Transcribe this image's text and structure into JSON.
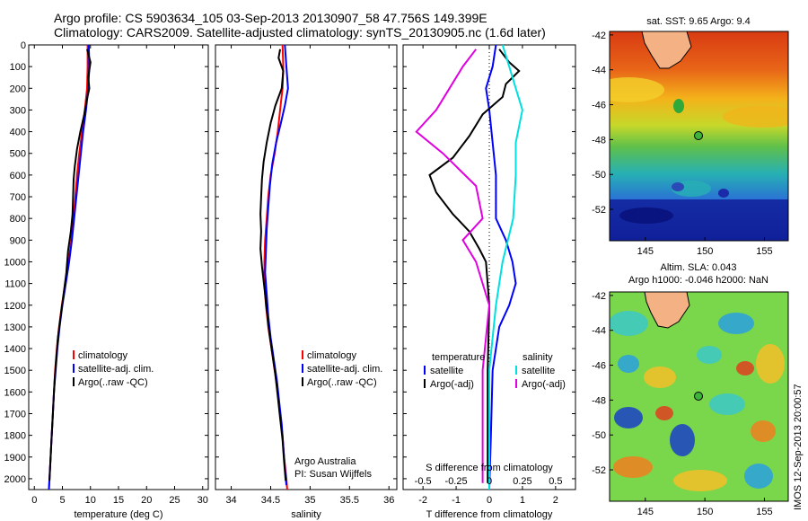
{
  "title": {
    "line1": "Argo profile: CS 5903634_105 03-Sep-2013 20130907_58 47.756S 149.399E",
    "line2": "Climatology: CARS2009. Satellite-adjusted climatology: synTS_20130905.nc (1.6d later)"
  },
  "colors": {
    "climatology": "#ff0000",
    "satellite": "#0000ff",
    "argo": "#000000",
    "satellite_s": "#00e0e0",
    "argo_s": "#e000e0"
  },
  "chart_data": [
    {
      "type": "line",
      "xlabel": "temperature (deg C)",
      "ylabel": "",
      "xlim": [
        -1,
        31
      ],
      "ylim": [
        2050,
        0
      ],
      "xticks": [
        0,
        5,
        10,
        15,
        20,
        25,
        30
      ],
      "yticks": [
        0,
        100,
        200,
        300,
        400,
        500,
        600,
        700,
        800,
        900,
        1000,
        1100,
        1200,
        1300,
        1400,
        1500,
        1600,
        1700,
        1800,
        1900,
        2000
      ],
      "legend": [
        "climatology",
        "satellite-adj. clim.",
        "Argo(..raw -QC)"
      ],
      "series": [
        {
          "name": "climatology",
          "points": [
            [
              9.5,
              0
            ],
            [
              9.5,
              100
            ],
            [
              9.4,
              200
            ],
            [
              9.0,
              300
            ],
            [
              8.5,
              400
            ],
            [
              8.0,
              500
            ],
            [
              7.6,
              600
            ],
            [
              7.3,
              700
            ],
            [
              7.0,
              800
            ],
            [
              6.6,
              900
            ],
            [
              6.1,
              1000
            ],
            [
              5.5,
              1100
            ],
            [
              4.9,
              1200
            ],
            [
              4.4,
              1300
            ],
            [
              4.0,
              1400
            ],
            [
              3.7,
              1500
            ],
            [
              3.5,
              1600
            ],
            [
              3.3,
              1700
            ],
            [
              3.1,
              1800
            ],
            [
              2.9,
              1900
            ],
            [
              2.7,
              2000
            ],
            [
              2.6,
              2050
            ]
          ]
        },
        {
          "name": "satellite-adj. clim.",
          "points": [
            [
              9.7,
              0
            ],
            [
              9.8,
              100
            ],
            [
              9.6,
              200
            ],
            [
              9.2,
              300
            ],
            [
              8.7,
              400
            ],
            [
              8.3,
              500
            ],
            [
              7.9,
              600
            ],
            [
              7.5,
              700
            ],
            [
              7.1,
              800
            ],
            [
              6.7,
              900
            ],
            [
              6.2,
              1000
            ],
            [
              5.6,
              1100
            ],
            [
              5.0,
              1200
            ],
            [
              4.5,
              1300
            ],
            [
              4.1,
              1400
            ],
            [
              3.8,
              1500
            ],
            [
              3.5,
              1600
            ],
            [
              3.3,
              1700
            ],
            [
              3.1,
              1800
            ],
            [
              2.9,
              1900
            ],
            [
              2.7,
              2000
            ],
            [
              2.6,
              2050
            ]
          ]
        },
        {
          "name": "Argo(..raw -QC)",
          "points": [
            [
              9.4,
              20
            ],
            [
              10.0,
              80
            ],
            [
              9.6,
              150
            ],
            [
              9.8,
              200
            ],
            [
              9.3,
              260
            ],
            [
              8.9,
              320
            ],
            [
              8.2,
              400
            ],
            [
              7.6,
              480
            ],
            [
              7.2,
              560
            ],
            [
              7.0,
              620
            ],
            [
              6.9,
              700
            ],
            [
              6.8,
              780
            ],
            [
              6.5,
              860
            ],
            [
              6.0,
              950
            ],
            [
              5.7,
              1050
            ],
            [
              5.2,
              1150
            ],
            [
              4.7,
              1250
            ],
            [
              4.2,
              1350
            ],
            [
              3.9,
              1450
            ],
            [
              3.6,
              1550
            ],
            [
              3.4,
              1650
            ],
            [
              3.2,
              1750
            ],
            [
              3.0,
              1850
            ],
            [
              2.8,
              1950
            ],
            [
              2.7,
              2010
            ]
          ]
        }
      ]
    },
    {
      "type": "line",
      "xlabel": "salinity",
      "ylabel": "",
      "xlim": [
        33.8,
        36.1
      ],
      "ylim": [
        2050,
        0
      ],
      "xticks": [
        34,
        34.5,
        35,
        35.5,
        36
      ],
      "legend": [
        "climatology",
        "satellite-adj. clim.",
        "Argo(..raw -QC)"
      ],
      "annotation": [
        "Argo Australia",
        "PI: Susan Wijffels"
      ],
      "series": [
        {
          "name": "climatology",
          "points": [
            [
              34.65,
              0
            ],
            [
              34.66,
              100
            ],
            [
              34.65,
              200
            ],
            [
              34.62,
              300
            ],
            [
              34.59,
              400
            ],
            [
              34.55,
              500
            ],
            [
              34.5,
              600
            ],
            [
              34.47,
              700
            ],
            [
              34.45,
              800
            ],
            [
              34.43,
              900
            ],
            [
              34.42,
              1000
            ],
            [
              34.42,
              1100
            ],
            [
              34.44,
              1200
            ],
            [
              34.47,
              1300
            ],
            [
              34.51,
              1400
            ],
            [
              34.55,
              1500
            ],
            [
              34.59,
              1600
            ],
            [
              34.62,
              1700
            ],
            [
              34.65,
              1800
            ],
            [
              34.67,
              1900
            ],
            [
              34.7,
              2000
            ],
            [
              34.71,
              2050
            ]
          ]
        },
        {
          "name": "satellite-adj. clim.",
          "points": [
            [
              34.68,
              0
            ],
            [
              34.7,
              100
            ],
            [
              34.72,
              200
            ],
            [
              34.68,
              280
            ],
            [
              34.63,
              360
            ],
            [
              34.57,
              450
            ],
            [
              34.52,
              550
            ],
            [
              34.49,
              650
            ],
            [
              34.47,
              750
            ],
            [
              34.45,
              850
            ],
            [
              34.44,
              950
            ],
            [
              34.43,
              1050
            ],
            [
              34.45,
              1150
            ],
            [
              34.47,
              1250
            ],
            [
              34.5,
              1350
            ],
            [
              34.54,
              1450
            ],
            [
              34.58,
              1550
            ],
            [
              34.61,
              1650
            ],
            [
              34.64,
              1750
            ],
            [
              34.66,
              1850
            ],
            [
              34.68,
              1950
            ],
            [
              34.7,
              2030
            ]
          ]
        },
        {
          "name": "Argo(..raw -QC)",
          "points": [
            [
              34.62,
              20
            ],
            [
              34.6,
              60
            ],
            [
              34.66,
              120
            ],
            [
              34.64,
              200
            ],
            [
              34.56,
              280
            ],
            [
              34.5,
              360
            ],
            [
              34.45,
              450
            ],
            [
              34.41,
              540
            ],
            [
              34.39,
              620
            ],
            [
              34.38,
              700
            ],
            [
              34.37,
              780
            ],
            [
              34.38,
              860
            ],
            [
              34.37,
              940
            ],
            [
              34.39,
              1020
            ],
            [
              34.42,
              1120
            ],
            [
              34.45,
              1220
            ],
            [
              34.48,
              1320
            ],
            [
              34.52,
              1420
            ],
            [
              34.56,
              1520
            ],
            [
              34.59,
              1620
            ],
            [
              34.62,
              1720
            ],
            [
              34.65,
              1820
            ],
            [
              34.67,
              1920
            ],
            [
              34.69,
              2010
            ]
          ]
        }
      ]
    },
    {
      "type": "line",
      "xlabel": "T difference from climatology",
      "x2label": "S difference from climatology",
      "xlim": [
        -2.6,
        2.6
      ],
      "ylim": [
        2050,
        0
      ],
      "xticks": [
        -2,
        -1,
        0,
        1,
        2
      ],
      "x2ticks": [
        "-0.5",
        "-0.25",
        "0",
        "0.25",
        "0.5"
      ],
      "legend_t": {
        "header": "temperature",
        "items": [
          "satellite",
          "Argo(-adj)"
        ]
      },
      "legend_s": {
        "header": "salinity",
        "items": [
          "satellite",
          "Argo(-adj)"
        ]
      },
      "series": [
        {
          "name": "satellite",
          "group": "temperature",
          "points": [
            [
              0.2,
              0
            ],
            [
              0.1,
              100
            ],
            [
              -0.1,
              200
            ],
            [
              0.0,
              300
            ],
            [
              0.1,
              450
            ],
            [
              0.2,
              600
            ],
            [
              0.2,
              800
            ],
            [
              0.5,
              900
            ],
            [
              0.7,
              1000
            ],
            [
              0.8,
              1100
            ],
            [
              0.6,
              1200
            ],
            [
              0.3,
              1300
            ],
            [
              0.1,
              1500
            ],
            [
              0.05,
              1800
            ],
            [
              0.0,
              2050
            ]
          ]
        },
        {
          "name": "Argo(-adj)",
          "group": "temperature",
          "points": [
            [
              0.3,
              20
            ],
            [
              0.6,
              80
            ],
            [
              0.9,
              120
            ],
            [
              0.5,
              180
            ],
            [
              0.4,
              240
            ],
            [
              -0.2,
              320
            ],
            [
              -0.6,
              420
            ],
            [
              -1.1,
              520
            ],
            [
              -1.8,
              600
            ],
            [
              -1.6,
              680
            ],
            [
              -1.1,
              780
            ],
            [
              -0.6,
              860
            ],
            [
              -0.3,
              940
            ],
            [
              -0.1,
              1000
            ],
            [
              0.0,
              1200
            ],
            [
              -0.05,
              1500
            ],
            [
              -0.05,
              1800
            ],
            [
              -0.05,
              2020
            ]
          ]
        },
        {
          "name": "satellite",
          "group": "salinity",
          "points": [
            [
              0.1,
              0
            ],
            [
              0.15,
              100
            ],
            [
              0.2,
              200
            ],
            [
              0.25,
              300
            ],
            [
              0.2,
              450
            ],
            [
              0.2,
              600
            ],
            [
              0.18,
              800
            ],
            [
              0.1,
              1000
            ],
            [
              0.05,
              1200
            ],
            [
              0.0,
              1500
            ],
            [
              0.0,
              1800
            ],
            [
              0.0,
              2050
            ]
          ]
        },
        {
          "name": "Argo(-adj)",
          "group": "salinity",
          "points": [
            [
              -0.1,
              20
            ],
            [
              -0.2,
              100
            ],
            [
              -0.3,
              200
            ],
            [
              -0.4,
              300
            ],
            [
              -0.55,
              400
            ],
            [
              -0.35,
              500
            ],
            [
              -0.1,
              650
            ],
            [
              -0.05,
              800
            ],
            [
              -0.2,
              900
            ],
            [
              -0.1,
              1000
            ],
            [
              0.0,
              1200
            ],
            [
              -0.05,
              1500
            ],
            [
              -0.05,
              1800
            ],
            [
              -0.05,
              2020
            ]
          ]
        }
      ]
    }
  ],
  "maps": {
    "sst": {
      "title": "sat. SST: 9.65 Argo: 9.4",
      "yticks": [
        "-42",
        "-44",
        "-46",
        "-48",
        "-50",
        "-52"
      ],
      "xticks": [
        "145",
        "150",
        "155"
      ],
      "xlim": [
        142,
        157
      ],
      "ylim": [
        -53.8,
        -41.8
      ],
      "profile": [
        149.4,
        -47.76
      ]
    },
    "sla": {
      "title1": "Altim. SLA: 0.043",
      "title2": "Argo h1000: -0.046 h2000: NaN",
      "yticks": [
        "-42",
        "-44",
        "-46",
        "-48",
        "-50",
        "-52"
      ],
      "xticks": [
        "145",
        "150",
        "155"
      ],
      "xlim": [
        142,
        157
      ],
      "ylim": [
        -53.8,
        -41.8
      ],
      "profile": [
        149.4,
        -47.76
      ]
    }
  },
  "timestamp": "IMOS 12-Sep-2013 20:00:57"
}
